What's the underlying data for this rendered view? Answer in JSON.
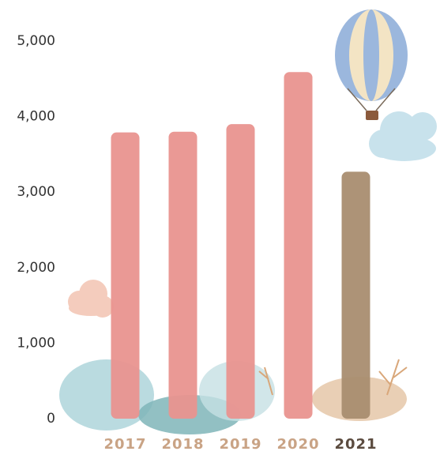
{
  "chart_data": {
    "type": "bar",
    "categories": [
      "2017",
      "2018",
      "2019",
      "2020",
      "2021"
    ],
    "values": [
      3790,
      3800,
      3900,
      4590,
      3270
    ],
    "colors": [
      "#e9948f",
      "#e9948f",
      "#e9948f",
      "#e9948f",
      "#a98d70"
    ],
    "label_colors": [
      "#c9a385",
      "#c9a385",
      "#c9a385",
      "#c9a385",
      "#5b4b3f"
    ],
    "ylim": [
      0,
      5000
    ],
    "yticks": [
      0,
      {
        "value": 1000,
        "label": "1,000"
      },
      {
        "value": 2000,
        "label": "2,000"
      },
      {
        "value": 3000,
        "label": "3,000"
      },
      {
        "value": 4000,
        "label": "4,000"
      },
      {
        "value": 5000,
        "label": "5,000"
      }
    ],
    "grid": false
  }
}
